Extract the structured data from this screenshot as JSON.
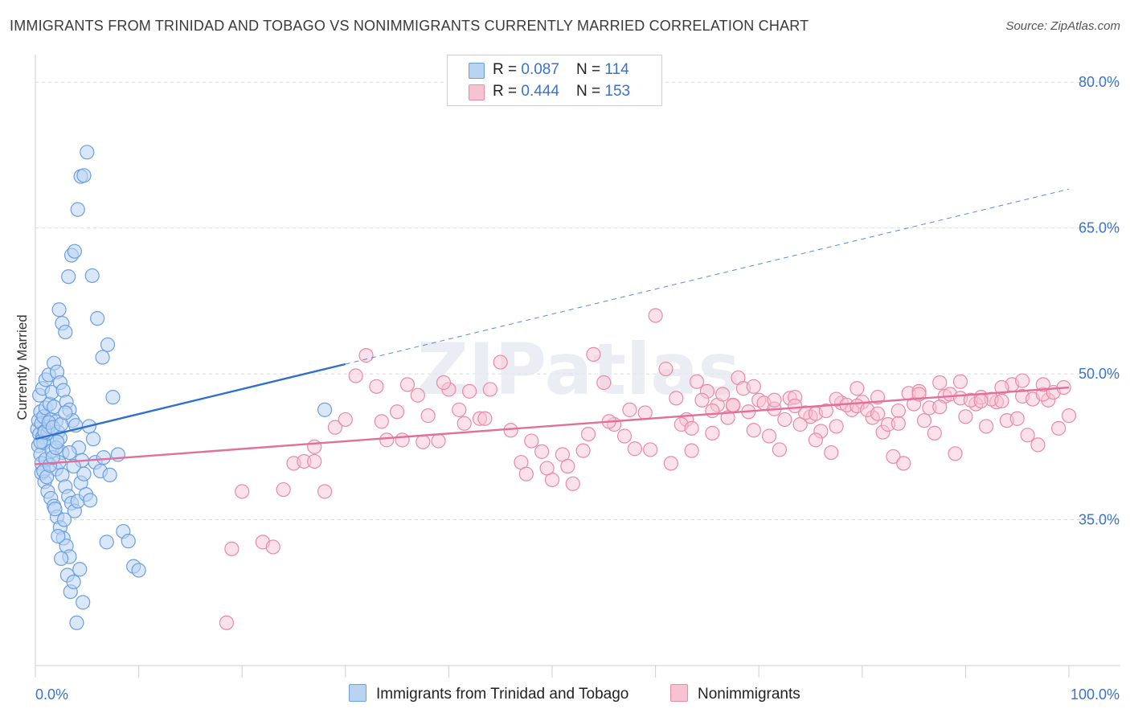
{
  "title": "IMMIGRANTS FROM TRINIDAD AND TOBAGO VS NONIMMIGRANTS CURRENTLY MARRIED CORRELATION CHART",
  "source": "Source: ZipAtlas.com",
  "watermark": "ZIPatlas",
  "legend": {
    "rows": [
      {
        "r_label": "R = ",
        "r_value": "0.087",
        "n_label": "N = ",
        "n_value": "114"
      },
      {
        "r_label": "R = ",
        "r_value": "0.444",
        "n_label": "N = ",
        "n_value": "153"
      }
    ]
  },
  "colors": {
    "blue_fill": "#b9d3f3",
    "blue_stroke": "#6a9fe0",
    "blue_line": "#2f6fce",
    "pink_fill": "#f7c3d3",
    "pink_stroke": "#e98aa8",
    "pink_line": "#e0709a",
    "grid": "#dcdcdc",
    "tick_label": "#3a73c9"
  },
  "chart_data": {
    "type": "scatter",
    "title": "IMMIGRANTS FROM TRINIDAD AND TOBAGO VS NONIMMIGRANTS CURRENTLY MARRIED CORRELATION CHART",
    "ylabel": "Currently Married",
    "xlabel": "",
    "xlim": [
      0,
      100
    ],
    "ylim": [
      20,
      82
    ],
    "x_tick_labels": [
      "0.0%",
      "100.0%"
    ],
    "y_ticks": [
      35,
      50,
      65,
      80
    ],
    "y_tick_labels": [
      "35.0%",
      "50.0%",
      "65.0%",
      "80.0%"
    ],
    "grid": "horizontal dashed",
    "legend_position": "top-center",
    "series": [
      {
        "name": "Immigrants from Trinidad and Tobago",
        "color": "blue",
        "R": 0.087,
        "N": 114,
        "trend": {
          "x": [
            0,
            30
          ],
          "y": [
            43.3,
            51.0
          ],
          "extended_to": [
            100,
            69.0
          ]
        },
        "points": [
          [
            0.2,
            44.3
          ],
          [
            0.3,
            45.2
          ],
          [
            0.4,
            43.8
          ],
          [
            0.5,
            46.1
          ],
          [
            0.6,
            44.9
          ],
          [
            0.7,
            43.5
          ],
          [
            0.8,
            45.6
          ],
          [
            0.9,
            44.1
          ],
          [
            1.0,
            46.5
          ],
          [
            1.1,
            43.2
          ],
          [
            0.3,
            42.6
          ],
          [
            0.5,
            41.7
          ],
          [
            0.6,
            40.8
          ],
          [
            0.8,
            42.9
          ],
          [
            1.0,
            41.2
          ],
          [
            1.2,
            43.9
          ],
          [
            1.3,
            44.6
          ],
          [
            1.4,
            46.9
          ],
          [
            1.5,
            45.3
          ],
          [
            1.6,
            42.1
          ],
          [
            0.4,
            47.8
          ],
          [
            0.7,
            48.5
          ],
          [
            1.0,
            49.4
          ],
          [
            1.3,
            49.9
          ],
          [
            1.6,
            48.1
          ],
          [
            1.8,
            46.6
          ],
          [
            2.0,
            45.1
          ],
          [
            2.2,
            44.0
          ],
          [
            2.4,
            43.4
          ],
          [
            2.6,
            41.9
          ],
          [
            0.6,
            39.8
          ],
          [
            0.9,
            38.9
          ],
          [
            1.2,
            37.9
          ],
          [
            1.5,
            37.2
          ],
          [
            1.8,
            36.4
          ],
          [
            2.1,
            35.3
          ],
          [
            2.4,
            34.2
          ],
          [
            2.7,
            33.1
          ],
          [
            3.0,
            32.3
          ],
          [
            3.3,
            31.2
          ],
          [
            2.0,
            40.2
          ],
          [
            2.3,
            40.9
          ],
          [
            2.6,
            39.6
          ],
          [
            2.9,
            38.4
          ],
          [
            3.2,
            37.4
          ],
          [
            3.5,
            36.7
          ],
          [
            3.8,
            35.9
          ],
          [
            4.1,
            36.9
          ],
          [
            4.4,
            38.8
          ],
          [
            4.7,
            39.7
          ],
          [
            1.8,
            51.1
          ],
          [
            2.1,
            50.2
          ],
          [
            2.4,
            49.1
          ],
          [
            2.7,
            48.3
          ],
          [
            3.0,
            47.1
          ],
          [
            3.3,
            46.3
          ],
          [
            3.6,
            45.2
          ],
          [
            3.9,
            44.7
          ],
          [
            4.2,
            42.4
          ],
          [
            4.5,
            41.1
          ],
          [
            2.3,
            56.6
          ],
          [
            2.6,
            55.2
          ],
          [
            2.9,
            54.3
          ],
          [
            3.2,
            60.0
          ],
          [
            3.5,
            62.2
          ],
          [
            3.8,
            62.6
          ],
          [
            4.1,
            66.9
          ],
          [
            4.4,
            70.3
          ],
          [
            4.7,
            70.4
          ],
          [
            5.0,
            72.8
          ],
          [
            5.5,
            60.1
          ],
          [
            6.0,
            55.7
          ],
          [
            6.5,
            51.7
          ],
          [
            7.0,
            53.0
          ],
          [
            7.5,
            47.6
          ],
          [
            8.0,
            41.7
          ],
          [
            8.5,
            33.8
          ],
          [
            9.0,
            32.8
          ],
          [
            9.5,
            30.2
          ],
          [
            10.0,
            29.8
          ],
          [
            3.1,
            29.3
          ],
          [
            3.4,
            27.6
          ],
          [
            3.7,
            28.6
          ],
          [
            4.0,
            24.4
          ],
          [
            4.3,
            29.9
          ],
          [
            4.6,
            26.5
          ],
          [
            2.2,
            33.3
          ],
          [
            2.5,
            31.0
          ],
          [
            2.8,
            35.0
          ],
          [
            1.9,
            36.1
          ],
          [
            0.8,
            40.0
          ],
          [
            1.1,
            39.4
          ],
          [
            1.4,
            40.6
          ],
          [
            1.7,
            41.4
          ],
          [
            2.0,
            42.4
          ],
          [
            5.2,
            44.6
          ],
          [
            5.8,
            40.9
          ],
          [
            6.3,
            40.0
          ],
          [
            6.6,
            41.4
          ],
          [
            7.2,
            39.6
          ],
          [
            0.5,
            43.0
          ],
          [
            0.9,
            44.0
          ],
          [
            1.3,
            45.0
          ],
          [
            1.7,
            44.5
          ],
          [
            2.1,
            43.0
          ],
          [
            2.5,
            44.8
          ],
          [
            2.9,
            46.0
          ],
          [
            3.3,
            41.9
          ],
          [
            3.7,
            40.5
          ],
          [
            4.9,
            37.6
          ],
          [
            5.3,
            37.0
          ],
          [
            5.6,
            43.3
          ],
          [
            28.0,
            46.3
          ],
          [
            6.9,
            32.7
          ]
        ]
      },
      {
        "name": "Nonimmigrants",
        "color": "pink",
        "R": 0.444,
        "N": 153,
        "trend": {
          "x": [
            0,
            100
          ],
          "y": [
            40.7,
            48.6
          ]
        },
        "points": [
          [
            19,
            32.0
          ],
          [
            20,
            37.9
          ],
          [
            22,
            32.7
          ],
          [
            23,
            32.2
          ],
          [
            24,
            38.1
          ],
          [
            25,
            40.8
          ],
          [
            26,
            41.0
          ],
          [
            27,
            41.0
          ],
          [
            28,
            37.9
          ],
          [
            29,
            44.5
          ],
          [
            27,
            42.5
          ],
          [
            30,
            45.3
          ],
          [
            31,
            49.8
          ],
          [
            32,
            51.9
          ],
          [
            33,
            48.7
          ],
          [
            34,
            43.2
          ],
          [
            35,
            46.1
          ],
          [
            36,
            48.9
          ],
          [
            37,
            47.8
          ],
          [
            38,
            45.7
          ],
          [
            39,
            43.1
          ],
          [
            40,
            48.4
          ],
          [
            41,
            46.3
          ],
          [
            42,
            48.2
          ],
          [
            43,
            45.4
          ],
          [
            44,
            48.4
          ],
          [
            45,
            51.2
          ],
          [
            46,
            44.2
          ],
          [
            47,
            40.9
          ],
          [
            48,
            43.1
          ],
          [
            49,
            42.0
          ],
          [
            50,
            39.1
          ],
          [
            51,
            41.7
          ],
          [
            52,
            38.7
          ],
          [
            53,
            42.1
          ],
          [
            54,
            52.0
          ],
          [
            55,
            49.1
          ],
          [
            56,
            44.8
          ],
          [
            57,
            43.6
          ],
          [
            58,
            42.3
          ],
          [
            59,
            46.0
          ],
          [
            60,
            56.0
          ],
          [
            61,
            50.5
          ],
          [
            62,
            47.5
          ],
          [
            63,
            45.3
          ],
          [
            64,
            49.2
          ],
          [
            65,
            48.2
          ],
          [
            66,
            46.8
          ],
          [
            67,
            45.5
          ],
          [
            68,
            49.6
          ],
          [
            69,
            46.1
          ],
          [
            70,
            47.3
          ],
          [
            71,
            43.6
          ],
          [
            72,
            42.2
          ],
          [
            73,
            47.5
          ],
          [
            74,
            44.8
          ],
          [
            75,
            45.6
          ],
          [
            76,
            44.1
          ],
          [
            77,
            41.9
          ],
          [
            78,
            47.0
          ],
          [
            79,
            46.3
          ],
          [
            80,
            47.1
          ],
          [
            81,
            45.5
          ],
          [
            82,
            44.0
          ],
          [
            83,
            41.5
          ],
          [
            84,
            40.8
          ],
          [
            85,
            46.9
          ],
          [
            86,
            45.2
          ],
          [
            87,
            43.9
          ],
          [
            88,
            47.7
          ],
          [
            89,
            41.8
          ],
          [
            90,
            45.6
          ],
          [
            91,
            46.9
          ],
          [
            92,
            44.6
          ],
          [
            93,
            47.1
          ],
          [
            94,
            45.2
          ],
          [
            95,
            45.4
          ],
          [
            96,
            43.7
          ],
          [
            97,
            42.7
          ],
          [
            98,
            47.3
          ],
          [
            99,
            44.4
          ],
          [
            100,
            45.7
          ],
          [
            62.5,
            44.8
          ],
          [
            63.5,
            44.4
          ],
          [
            64.5,
            47.3
          ],
          [
            65.5,
            46.2
          ],
          [
            66.5,
            47.9
          ],
          [
            67.5,
            46.7
          ],
          [
            68.5,
            48.5
          ],
          [
            69.5,
            44.2
          ],
          [
            70.5,
            47.0
          ],
          [
            71.5,
            46.4
          ],
          [
            72.5,
            45.3
          ],
          [
            73.5,
            47.6
          ],
          [
            74.5,
            46.0
          ],
          [
            75.5,
            45.9
          ],
          [
            76.5,
            46.2
          ],
          [
            77.5,
            47.4
          ],
          [
            78.5,
            46.8
          ],
          [
            79.5,
            46.7
          ],
          [
            80.5,
            46.3
          ],
          [
            81.5,
            45.9
          ],
          [
            82.5,
            44.8
          ],
          [
            83.5,
            46.2
          ],
          [
            84.5,
            48.0
          ],
          [
            85.5,
            48.2
          ],
          [
            86.5,
            46.5
          ],
          [
            87.5,
            49.1
          ],
          [
            88.5,
            47.9
          ],
          [
            89.5,
            47.5
          ],
          [
            90.5,
            47.3
          ],
          [
            91.5,
            47.6
          ],
          [
            92.5,
            47.4
          ],
          [
            93.5,
            47.2
          ],
          [
            94.5,
            48.9
          ],
          [
            95.5,
            47.7
          ],
          [
            96.5,
            47.4
          ],
          [
            97.5,
            47.9
          ],
          [
            98.5,
            48.1
          ],
          [
            99.5,
            48.6
          ],
          [
            33.5,
            45.1
          ],
          [
            35.5,
            43.2
          ],
          [
            37.5,
            43.0
          ],
          [
            39.5,
            49.1
          ],
          [
            41.5,
            44.9
          ],
          [
            43.5,
            45.4
          ],
          [
            47.5,
            39.7
          ],
          [
            49.5,
            40.3
          ],
          [
            51.5,
            40.5
          ],
          [
            53.5,
            43.8
          ],
          [
            55.5,
            45.1
          ],
          [
            57.5,
            46.3
          ],
          [
            59.5,
            42.2
          ],
          [
            61.5,
            40.8
          ],
          [
            63.5,
            42.1
          ],
          [
            65.5,
            43.9
          ],
          [
            67.5,
            46.8
          ],
          [
            69.5,
            48.7
          ],
          [
            71.5,
            47.3
          ],
          [
            73.5,
            46.7
          ],
          [
            75.5,
            43.2
          ],
          [
            77.5,
            44.6
          ],
          [
            79.5,
            48.5
          ],
          [
            81.5,
            47.6
          ],
          [
            83.5,
            44.9
          ],
          [
            85.5,
            47.9
          ],
          [
            87.5,
            46.6
          ],
          [
            89.5,
            49.2
          ],
          [
            91.5,
            47.2
          ],
          [
            93.5,
            48.6
          ],
          [
            95.5,
            49.3
          ],
          [
            97.5,
            48.9
          ],
          [
            18.5,
            24.4
          ]
        ]
      }
    ]
  },
  "bottom_legend": [
    {
      "label": "Immigrants from Trinidad and Tobago"
    },
    {
      "label": "Nonimmigrants"
    }
  ]
}
